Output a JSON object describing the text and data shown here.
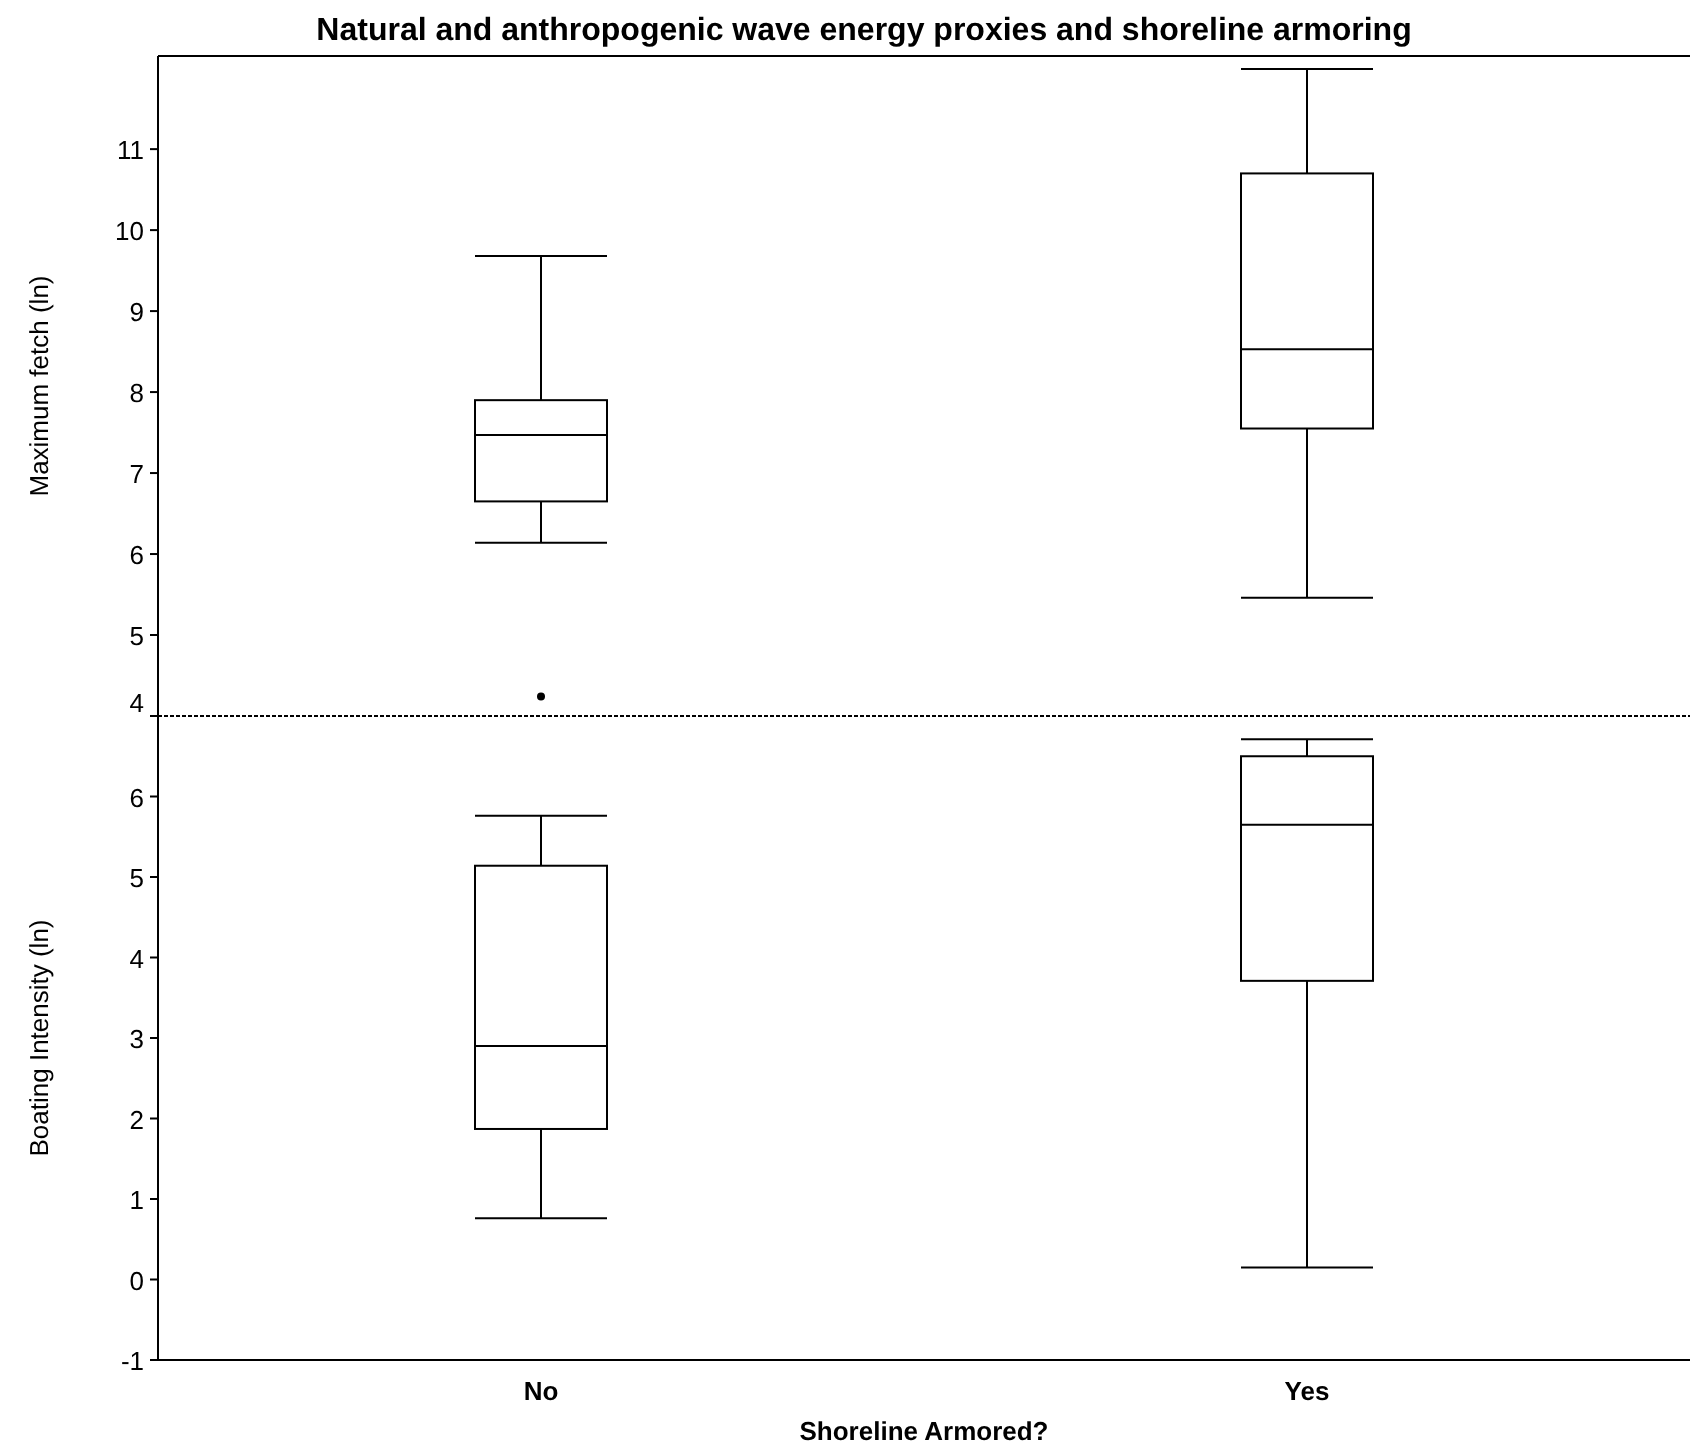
{
  "chart_data": [
    {
      "type": "box",
      "title": "Natural and anthropogenic wave energy proxies and shoreline armoring",
      "ylabel": "Maximum fetch (ln)",
      "ylim": [
        4,
        12.15
      ],
      "yticks": [
        4,
        5,
        6,
        7,
        8,
        9,
        10,
        11
      ],
      "tick_labels": "y",
      "boxes": [
        {
          "low": 6.14,
          "q1": 6.65,
          "median": 7.47,
          "q3": 7.9,
          "high": 9.68,
          "outliers": [
            4.24
          ]
        },
        {
          "low": 5.46,
          "q1": 7.55,
          "median": 8.53,
          "q3": 10.7,
          "high": 11.99
        }
      ]
    },
    {
      "type": "box",
      "ylabel": "Boating Intensity (ln)",
      "xlabel": "Shoreline Armored?",
      "categories": [
        "No",
        "Yes"
      ],
      "ylim": [
        -1,
        7
      ],
      "yticks": [
        -1,
        0,
        1,
        2,
        3,
        4,
        5,
        6
      ],
      "boxes": [
        {
          "low": 0.76,
          "q1": 1.87,
          "median": 2.9,
          "q3": 5.14,
          "high": 5.76
        },
        {
          "low": 0.15,
          "q1": 3.71,
          "median": 5.65,
          "q3": 6.5,
          "high": 6.71
        }
      ]
    }
  ]
}
